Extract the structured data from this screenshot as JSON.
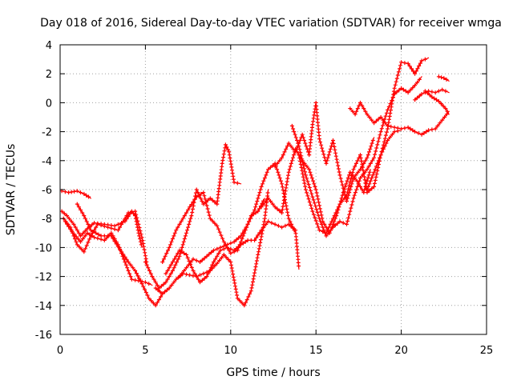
{
  "chart_data": {
    "type": "scatter",
    "title": "Day 018 of 2016, Sidereal Day-to-day VTEC variation (SDTVAR) for receiver wmga",
    "xlabel": "GPS time / hours",
    "ylabel": "SDTVAR / TECUs",
    "xlim": [
      0,
      25
    ],
    "ylim": [
      -16,
      4
    ],
    "xticks": [
      0,
      5,
      10,
      15,
      20,
      25
    ],
    "yticks": [
      -16,
      -14,
      -12,
      -10,
      -8,
      -6,
      -4,
      -2,
      0,
      2,
      4
    ],
    "grid": true,
    "marker": "plus",
    "color": "#ff0000",
    "series": [
      {
        "x": [
          0.1,
          0.5,
          1.0,
          1.4,
          1.8
        ],
        "y": [
          -6.1,
          -6.2,
          -6.1,
          -6.3,
          -6.6
        ]
      },
      {
        "x": [
          0.1,
          0.4,
          0.8,
          1.2,
          1.6,
          2.0,
          2.6,
          3.2,
          3.8,
          4.2,
          4.4,
          4.6,
          4.8
        ],
        "y": [
          -7.5,
          -7.8,
          -8.4,
          -9.2,
          -8.7,
          -8.3,
          -8.4,
          -8.5,
          -8.2,
          -7.5,
          -7.8,
          -9.0,
          -10.0
        ]
      },
      {
        "x": [
          0.2,
          0.6,
          1.0,
          1.4,
          1.8,
          2.2,
          2.8,
          3.4,
          4.0,
          4.4,
          4.8,
          5.1
        ],
        "y": [
          -8.0,
          -8.6,
          -9.8,
          -10.3,
          -9.2,
          -8.4,
          -8.6,
          -8.8,
          -7.6,
          -7.5,
          -9.3,
          -11.2
        ]
      },
      {
        "x": [
          0.3,
          0.7,
          1.2,
          1.6,
          2.0,
          2.6,
          3.0,
          3.4,
          3.8,
          4.2,
          4.6,
          5.0,
          5.4
        ],
        "y": [
          -8.2,
          -8.9,
          -9.6,
          -9.0,
          -9.3,
          -9.5,
          -9.0,
          -9.8,
          -11.0,
          -12.2,
          -12.3,
          -12.4,
          -12.6
        ]
      },
      {
        "x": [
          1.0,
          1.4,
          1.8,
          2.4,
          3.0,
          3.6,
          4.0,
          4.4,
          4.8,
          5.2,
          5.6,
          6.0
        ],
        "y": [
          -7.0,
          -7.8,
          -8.8,
          -9.2,
          -9.2,
          -10.3,
          -11.0,
          -11.6,
          -12.5,
          -13.5,
          -14.0,
          -13.2
        ]
      },
      {
        "x": [
          5.0,
          5.4,
          5.8,
          6.2,
          6.6,
          7.0,
          7.4,
          7.7,
          8.0,
          8.4,
          8.8,
          9.2,
          9.5,
          9.7,
          9.9,
          10.2,
          10.6
        ],
        "y": [
          -11.0,
          -12.0,
          -12.8,
          -12.4,
          -11.6,
          -10.6,
          -9.0,
          -7.8,
          -6.0,
          -7.0,
          -6.6,
          -7.0,
          -4.2,
          -2.9,
          -3.4,
          -5.5,
          -5.6
        ]
      },
      {
        "x": [
          5.6,
          6.0,
          6.4,
          6.8,
          7.2,
          7.6,
          8.0,
          8.4,
          8.8,
          9.2,
          9.6,
          10.0,
          10.4,
          10.8,
          11.2,
          11.6,
          12.0,
          12.2
        ],
        "y": [
          -12.8,
          -13.2,
          -12.8,
          -12.2,
          -11.8,
          -11.9,
          -12.0,
          -11.8,
          -11.6,
          -11.1,
          -10.5,
          -11.0,
          -13.5,
          -14.0,
          -13.0,
          -10.5,
          -8.0,
          -6.0
        ]
      },
      {
        "x": [
          6.0,
          6.4,
          6.8,
          7.2,
          7.6,
          8.0,
          8.4,
          8.8,
          9.2,
          9.6,
          10.0,
          10.4,
          10.8,
          11.2,
          11.6,
          12.0
        ],
        "y": [
          -11.0,
          -10.0,
          -8.8,
          -8.0,
          -7.2,
          -6.5,
          -6.2,
          -8.0,
          -8.5,
          -9.6,
          -10.4,
          -10.2,
          -9.0,
          -7.8,
          -7.5,
          -6.6
        ]
      },
      {
        "x": [
          6.2,
          6.6,
          7.0,
          7.4,
          7.8,
          8.2,
          8.6,
          9.0,
          9.4,
          9.8,
          10.2,
          10.6,
          11.0,
          11.4,
          11.8,
          12.2,
          12.6,
          13.0,
          13.4,
          13.8,
          14.0
        ],
        "y": [
          -11.8,
          -11.0,
          -10.2,
          -10.5,
          -11.6,
          -12.4,
          -12.0,
          -11.0,
          -10.2,
          -10.0,
          -10.2,
          -9.8,
          -9.5,
          -9.5,
          -8.8,
          -8.2,
          -8.4,
          -8.6,
          -8.4,
          -8.8,
          -11.5
        ]
      },
      {
        "x": [
          7.0,
          7.4,
          7.8,
          8.2,
          8.6,
          9.0,
          9.4,
          9.8,
          10.2,
          10.6,
          11.0,
          11.4,
          11.8,
          12.2,
          12.6,
          13.0,
          13.4,
          13.8
        ],
        "y": [
          -12.0,
          -11.4,
          -10.8,
          -11.0,
          -10.6,
          -10.2,
          -10.0,
          -9.8,
          -9.6,
          -9.2,
          -8.4,
          -7.4,
          -5.8,
          -4.6,
          -4.2,
          -5.6,
          -8.0,
          -9.0
        ]
      },
      {
        "x": [
          11.8,
          12.2,
          12.6,
          13.0,
          13.4,
          13.8,
          14.2,
          14.6,
          15.0,
          15.4,
          15.8,
          16.2,
          16.6,
          17.0,
          17.4,
          17.8,
          18.2
        ],
        "y": [
          -7.2,
          -6.6,
          -7.2,
          -7.6,
          -4.8,
          -3.2,
          -4.0,
          -4.6,
          -6.0,
          -8.2,
          -9.0,
          -7.8,
          -6.2,
          -4.8,
          -5.4,
          -6.2,
          -4.6
        ]
      },
      {
        "x": [
          12.6,
          13.0,
          13.4,
          13.8,
          14.2,
          14.6,
          14.8,
          15.0,
          15.2,
          15.6,
          16.0,
          16.4,
          16.8,
          17.2,
          17.6,
          18.0,
          18.4
        ],
        "y": [
          -4.4,
          -3.8,
          -2.8,
          -3.4,
          -2.2,
          -3.6,
          -1.5,
          0.0,
          -2.5,
          -4.2,
          -2.6,
          -5.0,
          -6.8,
          -5.2,
          -4.6,
          -3.8,
          -2.4
        ]
      },
      {
        "x": [
          13.6,
          14.0,
          14.4,
          14.8,
          15.2,
          15.6,
          16.0,
          16.4,
          16.8,
          17.2,
          17.6,
          18.0,
          18.4,
          18.8,
          19.2,
          19.6,
          20.0,
          20.4,
          20.8,
          21.2
        ],
        "y": [
          -1.6,
          -3.0,
          -5.0,
          -6.5,
          -8.0,
          -9.2,
          -8.6,
          -8.2,
          -8.4,
          -6.6,
          -5.2,
          -4.6,
          -3.8,
          -2.0,
          -0.5,
          0.6,
          1.0,
          0.7,
          1.2,
          1.8
        ]
      },
      {
        "x": [
          14.0,
          14.4,
          14.8,
          15.2,
          15.6,
          16.0,
          16.4,
          16.8,
          17.2,
          17.6,
          18.0,
          18.4,
          18.8,
          19.2,
          19.6,
          20.0,
          20.4,
          20.8,
          21.2,
          21.6
        ],
        "y": [
          -3.6,
          -6.0,
          -7.5,
          -8.8,
          -9.0,
          -8.0,
          -7.0,
          -6.4,
          -4.6,
          -3.6,
          -6.2,
          -5.8,
          -3.6,
          -1.8,
          1.0,
          2.8,
          2.7,
          2.0,
          2.9,
          3.1
        ]
      },
      {
        "x": [
          17.0,
          17.3,
          17.6,
          18.0,
          18.4,
          18.8,
          19.2,
          19.6,
          20.0,
          20.4,
          20.8,
          21.2,
          21.6,
          22.0,
          22.4,
          22.8
        ],
        "y": [
          -0.4,
          -0.8,
          0.0,
          -0.8,
          -1.4,
          -1.0,
          -1.6,
          -1.7,
          -1.8,
          -1.7,
          -2.0,
          -2.2,
          -1.9,
          -1.8,
          -1.2,
          -0.6
        ]
      },
      {
        "x": [
          20.8,
          21.2,
          21.6,
          22.0,
          22.4,
          22.8
        ],
        "y": [
          0.2,
          0.6,
          0.8,
          0.7,
          0.9,
          0.7
        ]
      },
      {
        "x": [
          21.4,
          21.8,
          22.2,
          22.6,
          22.8
        ],
        "y": [
          0.8,
          0.4,
          0.1,
          -0.4,
          -0.8
        ]
      },
      {
        "x": [
          22.2,
          22.5,
          22.8
        ],
        "y": [
          1.8,
          1.7,
          1.5
        ]
      },
      {
        "x": [
          18.0,
          18.4,
          18.8,
          19.2,
          19.6,
          20.0
        ],
        "y": [
          -6.0,
          -4.8,
          -3.6,
          -2.6,
          -2.0,
          -1.9
        ]
      }
    ]
  }
}
